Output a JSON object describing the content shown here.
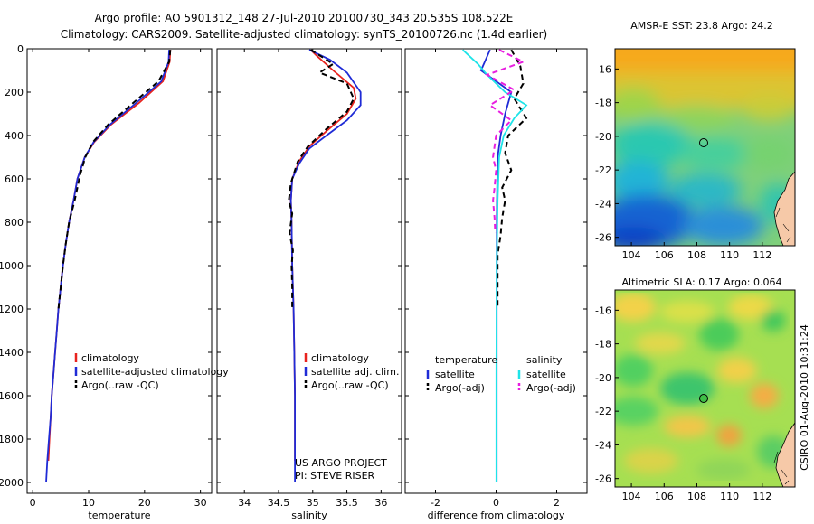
{
  "title_line1": "Argo profile: AO 5901312_148 27-Jul-2010 20100730_343 20.535S 108.522E",
  "title_line2": "Climatology: CARS2009. Satellite-adjusted climatology: synTS_20100726.nc (1.4d earlier)",
  "side_label": "CSIRO 01-Aug-2010 10:31:24",
  "colors": {
    "climatology": "#e8231e",
    "satellite": "#1f2bd6",
    "argo": "#000000",
    "satellite_sal": "#1ee4e8",
    "argo_sal": "#e81ee0"
  },
  "chart_data": [
    {
      "type": "line",
      "xlabel": "temperature",
      "xlim": [
        -1,
        32
      ],
      "ylim": [
        0,
        2050
      ],
      "xticks": [
        0,
        10,
        20,
        30
      ],
      "yticks": [
        0,
        200,
        400,
        600,
        800,
        1000,
        1200,
        1400,
        1600,
        1800,
        2000
      ],
      "ytick_labels": [
        "0",
        "200",
        "400",
        "600",
        "800",
        "1000",
        "1200",
        "1400",
        "1600",
        "1800",
        "2000"
      ],
      "series": [
        {
          "name": "climatology",
          "style": "solid",
          "points": [
            [
              24.6,
              5
            ],
            [
              24.5,
              60
            ],
            [
              23.3,
              150
            ],
            [
              19,
              250
            ],
            [
              14,
              350
            ],
            [
              11,
              430
            ],
            [
              9.3,
              500
            ],
            [
              8,
              600
            ],
            [
              7.3,
              700
            ],
            [
              6.5,
              800
            ],
            [
              5.9,
              900
            ],
            [
              5.4,
              1000
            ],
            [
              5,
              1100
            ],
            [
              4.6,
              1200
            ],
            [
              4.3,
              1300
            ],
            [
              4,
              1400
            ],
            [
              3.7,
              1500
            ],
            [
              3.4,
              1600
            ],
            [
              3.2,
              1700
            ],
            [
              3,
              1800
            ],
            [
              2.8,
              1900
            ]
          ]
        },
        {
          "name": "satellite-adjusted climatology",
          "style": "solid",
          "points": [
            [
              24.4,
              5
            ],
            [
              24.3,
              60
            ],
            [
              23,
              150
            ],
            [
              18.5,
              250
            ],
            [
              13.8,
              350
            ],
            [
              10.9,
              430
            ],
            [
              9.3,
              500
            ],
            [
              8,
              600
            ],
            [
              7.3,
              700
            ],
            [
              6.5,
              800
            ],
            [
              5.9,
              900
            ],
            [
              5.4,
              1000
            ],
            [
              5,
              1100
            ],
            [
              4.6,
              1200
            ],
            [
              4.3,
              1300
            ],
            [
              4,
              1400
            ],
            [
              3.7,
              1500
            ],
            [
              3.4,
              1600
            ],
            [
              3.2,
              1700
            ],
            [
              2.9,
              1800
            ],
            [
              2.6,
              1900
            ],
            [
              2.4,
              2000
            ]
          ]
        },
        {
          "name": "Argo(..raw -QC)",
          "style": "dash",
          "points": [
            [
              24.6,
              5
            ],
            [
              24.4,
              60
            ],
            [
              22.5,
              150
            ],
            [
              17.5,
              260
            ],
            [
              13.5,
              350
            ],
            [
              10.8,
              430
            ],
            [
              9.4,
              500
            ],
            [
              8.5,
              580
            ],
            [
              7.5,
              700
            ],
            [
              6.5,
              800
            ],
            [
              5.9,
              900
            ],
            [
              5.4,
              1000
            ],
            [
              5,
              1100
            ],
            [
              4.6,
              1200
            ]
          ]
        }
      ],
      "legend": [
        "climatology",
        "satellite-adjusted climatology",
        "Argo(..raw -QC)"
      ]
    },
    {
      "type": "line",
      "xlabel": "salinity",
      "xlim": [
        33.6,
        36.3
      ],
      "ylim": [
        0,
        2050
      ],
      "xticks": [
        34,
        34.5,
        35,
        35.5,
        36
      ],
      "series": [
        {
          "name": "climatology",
          "style": "solid",
          "points": [
            [
              34.97,
              5
            ],
            [
              35.05,
              30
            ],
            [
              35.3,
              100
            ],
            [
              35.6,
              180
            ],
            [
              35.63,
              230
            ],
            [
              35.5,
              300
            ],
            [
              35.2,
              380
            ],
            [
              34.95,
              450
            ],
            [
              34.8,
              520
            ],
            [
              34.7,
              600
            ],
            [
              34.68,
              700
            ],
            [
              34.69,
              800
            ],
            [
              34.7,
              1000
            ],
            [
              34.72,
              1200
            ],
            [
              34.73,
              1400
            ],
            [
              34.74,
              1600
            ],
            [
              34.74,
              1800
            ],
            [
              34.74,
              1900
            ]
          ]
        },
        {
          "name": "satellite adj. clim.",
          "style": "solid",
          "points": [
            [
              34.95,
              5
            ],
            [
              35.25,
              50
            ],
            [
              35.5,
              110
            ],
            [
              35.7,
              200
            ],
            [
              35.7,
              260
            ],
            [
              35.5,
              330
            ],
            [
              35.2,
              400
            ],
            [
              34.95,
              460
            ],
            [
              34.8,
              530
            ],
            [
              34.7,
              600
            ],
            [
              34.68,
              700
            ],
            [
              34.69,
              800
            ],
            [
              34.7,
              1000
            ],
            [
              34.72,
              1200
            ],
            [
              34.73,
              1400
            ],
            [
              34.74,
              1600
            ],
            [
              34.74,
              1800
            ],
            [
              34.74,
              2000
            ]
          ]
        },
        {
          "name": "Argo(..raw -QC)",
          "style": "dash",
          "points": [
            [
              34.97,
              5
            ],
            [
              35.3,
              70
            ],
            [
              35.1,
              110
            ],
            [
              35.5,
              160
            ],
            [
              35.6,
              230
            ],
            [
              35.5,
              290
            ],
            [
              35.2,
              370
            ],
            [
              34.93,
              450
            ],
            [
              34.78,
              520
            ],
            [
              34.68,
              620
            ],
            [
              34.65,
              700
            ],
            [
              34.7,
              760
            ],
            [
              34.66,
              850
            ],
            [
              34.71,
              930
            ],
            [
              34.69,
              1000
            ],
            [
              34.7,
              1100
            ],
            [
              34.7,
              1200
            ]
          ]
        }
      ],
      "legend": [
        "climatology",
        "satellite adj. clim.",
        "Argo(..raw -QC)"
      ],
      "annotation": [
        "US ARGO PROJECT",
        "PI: STEVE RISER"
      ]
    },
    {
      "type": "line",
      "xlabel": "difference from climatology",
      "xlim": [
        -3,
        3
      ],
      "ylim": [
        0,
        2050
      ],
      "xticks": [
        -2,
        0,
        2
      ],
      "series": [
        {
          "name": "temperature satellite",
          "style": "solid",
          "color": "satellite",
          "points": [
            [
              -0.2,
              5
            ],
            [
              -0.5,
              100
            ],
            [
              0.5,
              200
            ],
            [
              0.3,
              300
            ],
            [
              0.15,
              400
            ],
            [
              0.05,
              500
            ],
            [
              0.03,
              700
            ],
            [
              0.02,
              900
            ],
            [
              0.02,
              1200
            ],
            [
              0.02,
              1500
            ],
            [
              0.02,
              1800
            ],
            [
              0.02,
              2000
            ]
          ]
        },
        {
          "name": "temperature Argo(-adj)",
          "style": "dash",
          "color": "argo",
          "points": [
            [
              0.5,
              5
            ],
            [
              0.8,
              80
            ],
            [
              0.9,
              160
            ],
            [
              0.6,
              230
            ],
            [
              1,
              320
            ],
            [
              0.4,
              400
            ],
            [
              0.3,
              480
            ],
            [
              0.5,
              560
            ],
            [
              0.2,
              640
            ],
            [
              0.3,
              700
            ],
            [
              0.2,
              780
            ],
            [
              0.15,
              860
            ],
            [
              0.05,
              950
            ],
            [
              0.05,
              1200
            ]
          ]
        },
        {
          "name": "salinity satellite",
          "style": "solid",
          "color": "satellite_sal",
          "points": [
            [
              -1.1,
              5
            ],
            [
              -0.6,
              70
            ],
            [
              -0.3,
              120
            ],
            [
              0.3,
              200
            ],
            [
              1,
              260
            ],
            [
              0.6,
              320
            ],
            [
              0.25,
              400
            ],
            [
              0.1,
              500
            ],
            [
              0.05,
              700
            ],
            [
              0.02,
              1000
            ],
            [
              0.01,
              1500
            ],
            [
              0.01,
              2000
            ]
          ]
        },
        {
          "name": "salinity Argo(-adj)",
          "style": "dash",
          "color": "argo_sal",
          "points": [
            [
              0.1,
              5
            ],
            [
              0.9,
              60
            ],
            [
              -0.3,
              120
            ],
            [
              0.6,
              190
            ],
            [
              -0.2,
              260
            ],
            [
              0.5,
              330
            ],
            [
              0,
              400
            ],
            [
              -0.1,
              500
            ],
            [
              0,
              560
            ],
            [
              -0.05,
              640
            ],
            [
              -0.1,
              700
            ],
            [
              -0.05,
              780
            ],
            [
              -0.03,
              850
            ]
          ]
        }
      ],
      "legend_temperature": {
        "header": "temperature",
        "items": [
          "satellite",
          "Argo(-adj)"
        ]
      },
      "legend_salinity": {
        "header": "salinity",
        "items": [
          "satellite",
          "Argo(-adj)"
        ]
      }
    },
    {
      "type": "heatmap",
      "title": "AMSR-E SST: 23.8 Argo: 24.2",
      "xlim": [
        103,
        114
      ],
      "ylim": [
        -26.5,
        -14.8
      ],
      "xticks": [
        104,
        106,
        108,
        110,
        112
      ],
      "yticks": [
        -16,
        -18,
        -20,
        -22,
        -24,
        -26
      ],
      "marker": {
        "lon": 108.52,
        "lat": -20.54
      }
    },
    {
      "type": "heatmap",
      "title": "Altimetric SLA: 0.17 Argo: 0.064",
      "xlim": [
        103,
        114
      ],
      "ylim": [
        -26.5,
        -14.8
      ],
      "xticks": [
        104,
        106,
        108,
        110,
        112
      ],
      "yticks": [
        -16,
        -18,
        -20,
        -22,
        -24,
        -26
      ],
      "marker": {
        "lon": 108.52,
        "lat": -20.54
      }
    }
  ]
}
